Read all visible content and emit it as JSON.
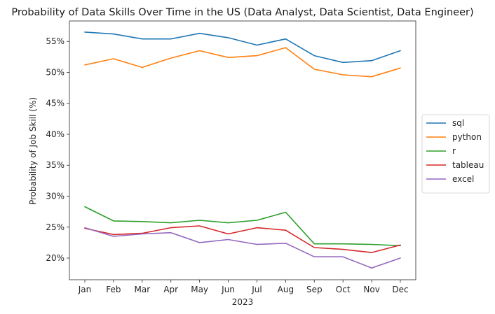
{
  "chart_data": {
    "type": "line",
    "title": "Probability of Data Skills Over Time in the US (Data Analyst, Data Scientist, Data Engineer)",
    "xlabel": "2023",
    "ylabel": "Probability of Job Skill (%)",
    "categories": [
      "Jan",
      "Feb",
      "Mar",
      "Apr",
      "May",
      "Jun",
      "Jul",
      "Aug",
      "Sep",
      "Oct",
      "Nov",
      "Dec"
    ],
    "ylim": [
      16.5,
      58.3
    ],
    "yticks": [
      20,
      25,
      30,
      35,
      40,
      45,
      50,
      55
    ],
    "ytick_labels": [
      "20%",
      "25%",
      "30%",
      "35%",
      "40%",
      "45%",
      "50%",
      "55%"
    ],
    "grid": false,
    "legend_position": "center-right",
    "series": [
      {
        "name": "sql",
        "color": "#1f77b4",
        "values": [
          56.5,
          56.2,
          55.4,
          55.4,
          56.3,
          55.6,
          54.4,
          55.4,
          52.7,
          51.6,
          51.9,
          53.5
        ]
      },
      {
        "name": "python",
        "color": "#ff7f0e",
        "values": [
          51.2,
          52.2,
          50.8,
          52.3,
          53.5,
          52.4,
          52.7,
          54.0,
          50.5,
          49.6,
          49.3,
          50.7
        ]
      },
      {
        "name": "r",
        "color": "#2ca02c",
        "values": [
          28.3,
          26.0,
          25.9,
          25.7,
          26.1,
          25.7,
          26.1,
          27.4,
          22.3,
          22.3,
          22.2,
          22.0
        ]
      },
      {
        "name": "tableau",
        "color": "#d62728",
        "values": [
          24.8,
          23.8,
          24.0,
          24.9,
          25.2,
          23.9,
          24.9,
          24.5,
          21.7,
          21.4,
          20.9,
          22.1
        ]
      },
      {
        "name": "excel",
        "color": "#9467bd",
        "values": [
          24.9,
          23.5,
          23.9,
          24.1,
          22.5,
          23.0,
          22.2,
          22.4,
          20.2,
          20.2,
          18.4,
          20.0
        ]
      }
    ]
  }
}
